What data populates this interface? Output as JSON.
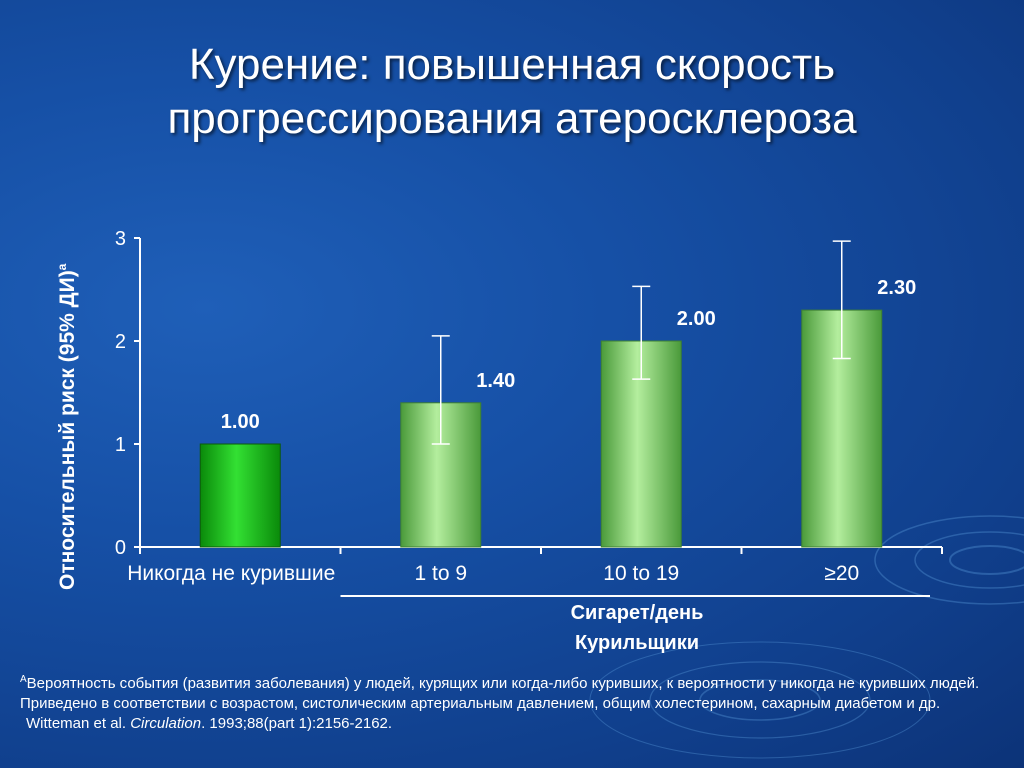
{
  "title": "Курение: повышенная скорость прогрессирования атеросклероза",
  "colors": {
    "background": "#1650a6",
    "never_smoked_bar": "#22cc22",
    "smoker_bars": "#8fdc7a",
    "error_bar": "#ffffff",
    "text": "#ffffff"
  },
  "chart_data": {
    "type": "bar",
    "ylabel": "Относительный риск  (95% ДИ)",
    "ylabel_superscript": "a",
    "categories": [
      "Никогда не курившие",
      "1 to 9",
      "10 to 19",
      "≥20"
    ],
    "values": [
      1.0,
      1.4,
      2.0,
      2.3
    ],
    "value_labels": [
      "1.00",
      "1.40",
      "2.00",
      "2.30"
    ],
    "ci_lower": [
      null,
      1.0,
      1.63,
      1.83
    ],
    "ci_upper": [
      null,
      2.05,
      2.53,
      2.97
    ],
    "ylim": [
      0,
      3
    ],
    "yticks": [
      "0",
      "1",
      "2",
      "3"
    ],
    "group_labels": [
      "Сигарет/день",
      "Курильщики"
    ],
    "grid": false,
    "legend": "none"
  },
  "footnote": {
    "marker": "A",
    "text": "Вероятность события (развития заболевания) у людей, курящих или когда-либо куривших, к вероятности у никогда не куривших людей. Приведено в соответствии с возрастом, систолическим артериальным давлением, общим холестерином, сахарным диабетом и др.",
    "citation_authors": "Witteman et al. ",
    "citation_journal": "Circulation",
    "citation_rest": ". 1993;88(part 1):2156-2162."
  }
}
